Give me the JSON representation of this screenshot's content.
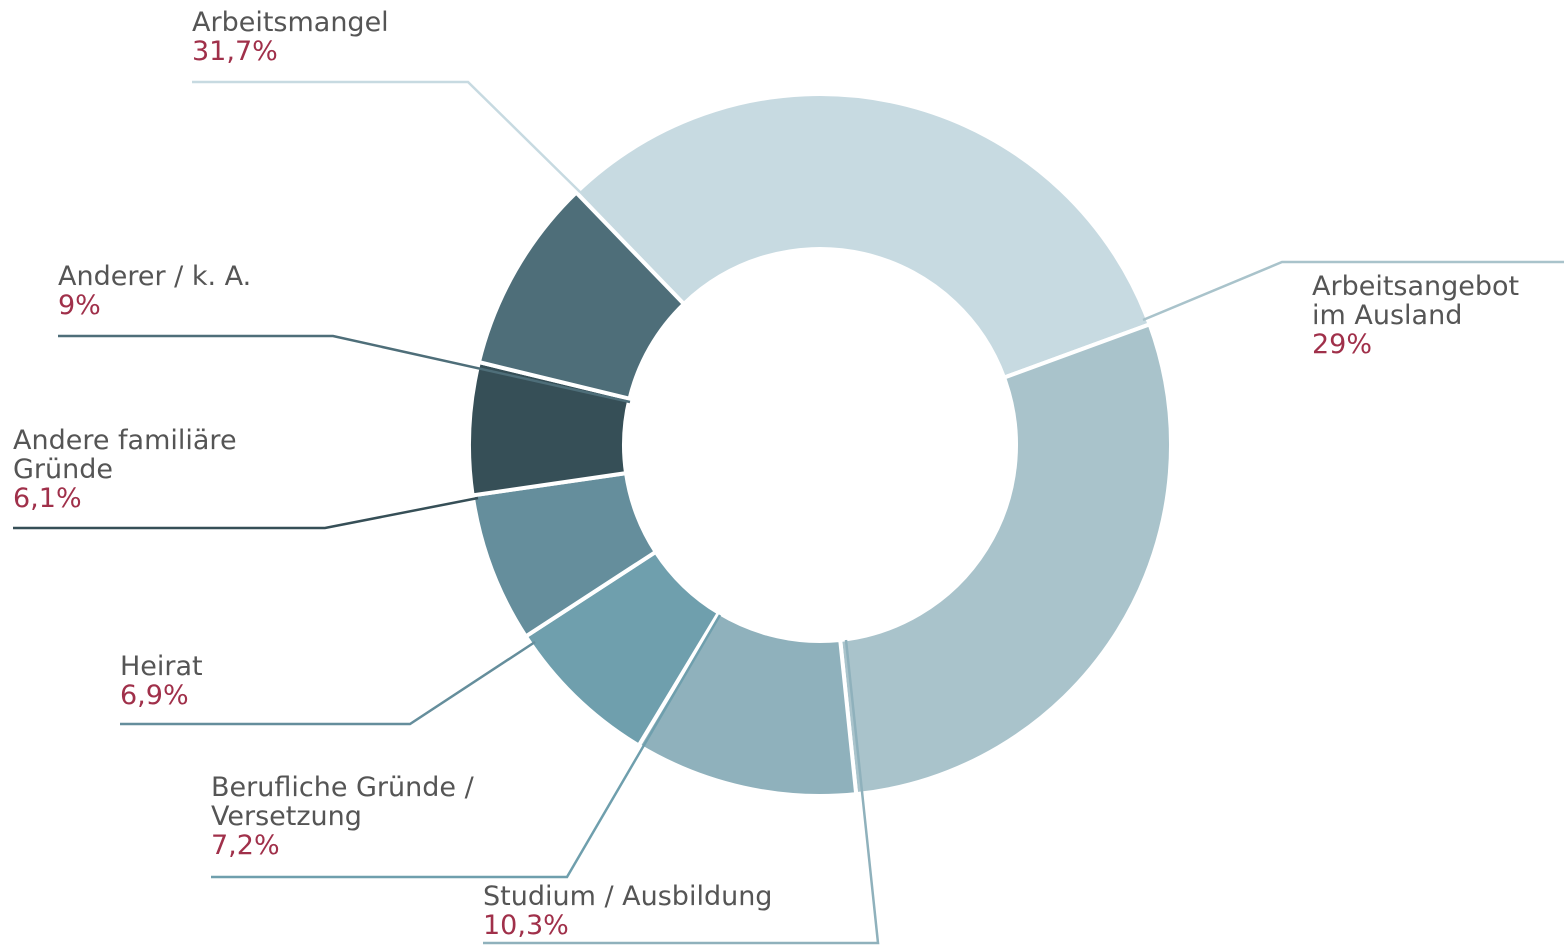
{
  "chart_data": {
    "type": "donut",
    "categories": [
      "Arbeitsmangel",
      "Arbeitsangebot\nim Ausland",
      "Studium / Ausbildung",
      "Berufliche Gründe /\nVersetzung",
      "Heirat",
      "Andere familiäre\nGründe",
      "Anderer / k. A."
    ],
    "values": [
      31.7,
      29,
      10.3,
      7.2,
      6.9,
      6.1,
      9
    ],
    "value_labels": [
      "31,7%",
      "29%",
      "10,3%",
      "7,2%",
      "6,9%",
      "6,1%",
      "9%"
    ],
    "colors": [
      "#c7dae1",
      "#a9c3cb",
      "#8fb1bc",
      "#6f9fad",
      "#658e9c",
      "#364f57",
      "#4e6e79"
    ],
    "label_color": "#a0304a"
  }
}
